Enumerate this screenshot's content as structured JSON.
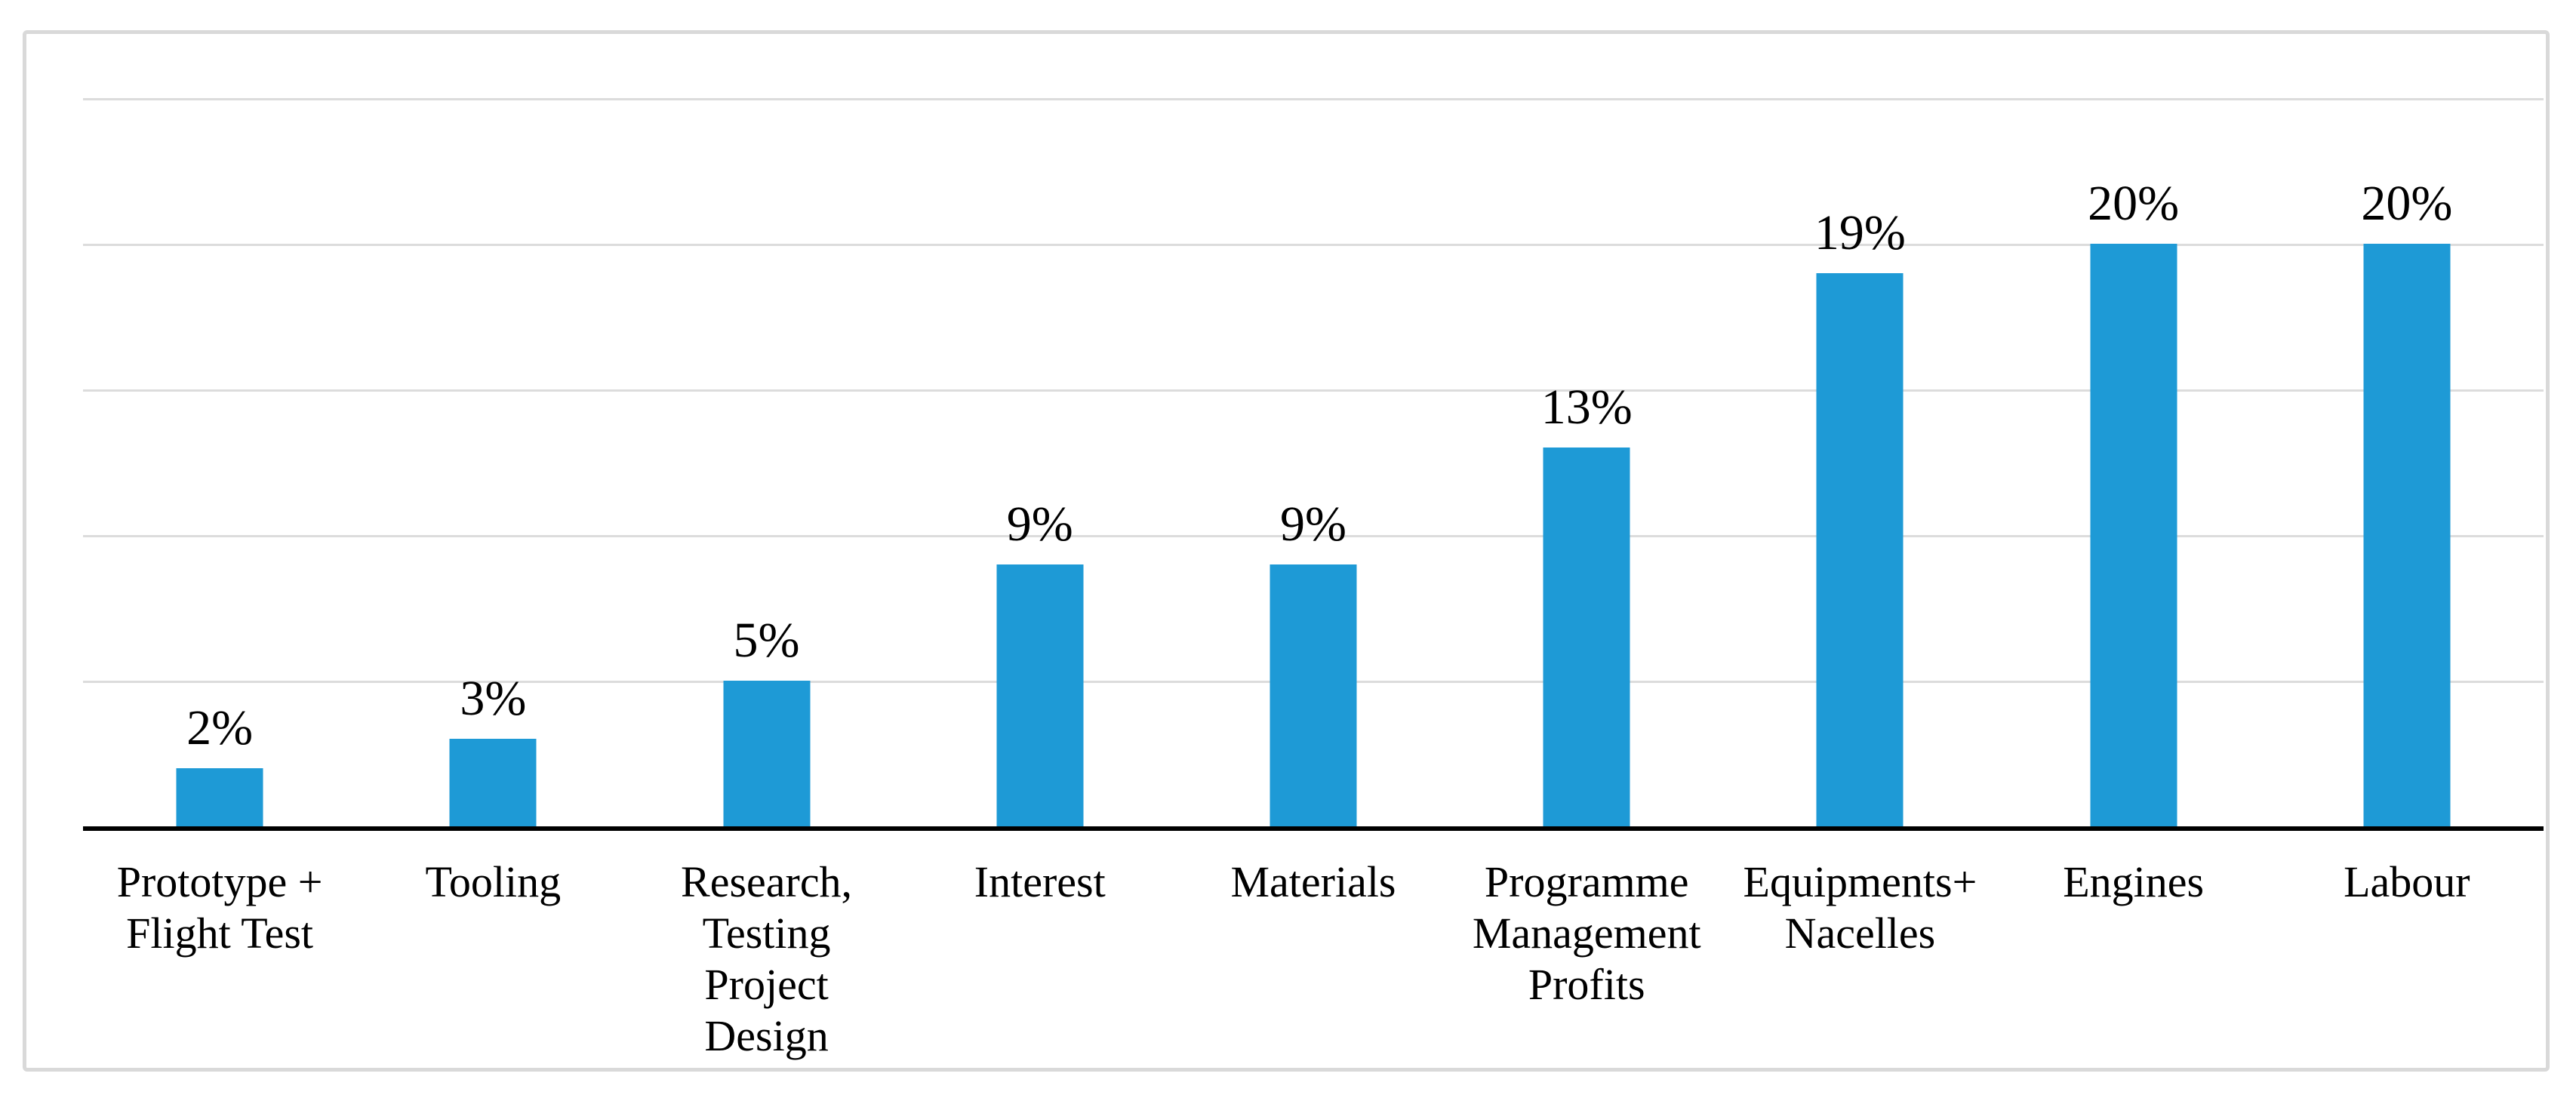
{
  "chart_data": {
    "type": "bar",
    "title": "",
    "xlabel": "",
    "ylabel": "",
    "categories": [
      "Prototype +\nFlight Test",
      "Tooling",
      "Research,\nTesting\nProject\nDesign",
      "Interest",
      "Materials",
      "Programme\nManagement\nProfits",
      "Equipments+\nNacelles",
      "Engines",
      "Labour"
    ],
    "values": [
      2,
      3,
      5,
      9,
      9,
      13,
      19,
      20,
      20
    ],
    "data_labels": [
      "2%",
      "3%",
      "5%",
      "9%",
      "9%",
      "13%",
      "19%",
      "20%",
      "20%"
    ],
    "ylim": [
      0,
      25
    ],
    "gridline_step": 5,
    "grid": true,
    "legend_position": "none",
    "y_tick_labels_visible": false,
    "colors": {
      "bar": "#1e9ad6",
      "gridline": "#dcdcdc",
      "frame_border": "#d9d9d9",
      "axis_line": "#000000",
      "text": "#000000",
      "background": "#ffffff"
    }
  }
}
